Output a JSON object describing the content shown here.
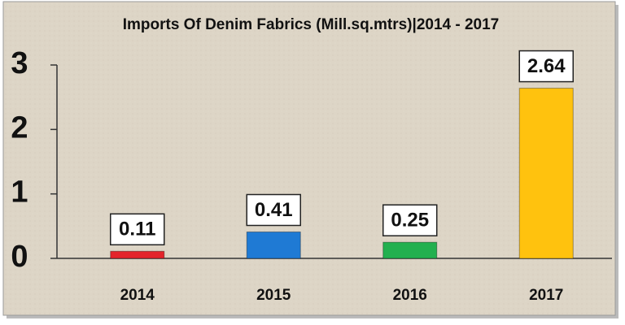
{
  "chart_data": {
    "type": "bar",
    "title": "Imports Of Denim Fabrics (Mill.sq.mtrs)|2014 - 2017",
    "categories": [
      "2014",
      "2015",
      "2016",
      "2017"
    ],
    "values": [
      0.11,
      0.41,
      0.25,
      2.64
    ],
    "colors": [
      "#e3242b",
      "#1f7ad4",
      "#22b04f",
      "#ffc20e"
    ],
    "ylim": [
      0,
      3
    ],
    "yticks": [
      0,
      1,
      2,
      3
    ],
    "grid": false
  }
}
